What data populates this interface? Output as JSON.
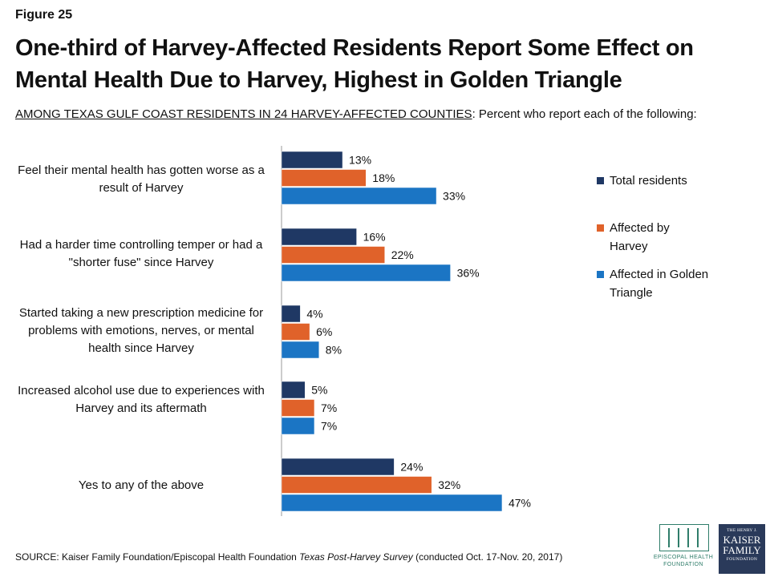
{
  "figure_label": "Figure 25",
  "title": "One-third of Harvey-Affected Residents Report Some Effect on Mental Health Due to Harvey, Highest in Golden Triangle",
  "subtitle_underlined": "AMONG TEXAS GULF COAST RESIDENTS IN 24 HARVEY-AFFECTED COUNTIES",
  "subtitle_rest": ": Percent who report each of the following:",
  "source_prefix": "SOURCE: Kaiser Family Foundation/Episcopal Health Foundation ",
  "source_italic": "Texas Post-Harvey Survey",
  "source_suffix": " (conducted Oct. 17-Nov. 20, 2017)",
  "logos": {
    "ehf_text": "EPISCOPAL HEALTH FOUNDATION",
    "kff_line1": "THE HENRY J.",
    "kff_line2": "KAISER FAMILY",
    "kff_line3": "FOUNDATION"
  },
  "chart_data": {
    "type": "bar",
    "orientation": "horizontal",
    "categories": [
      "Feel their mental health has gotten worse as a result of Harvey",
      "Had a harder time controlling temper or had a \"shorter fuse\" since Harvey",
      "Started taking a new prescription medicine for problems with emotions, nerves, or mental health since Harvey",
      "Increased alcohol use due to experiences with Harvey and its aftermath",
      "Yes to any of the above"
    ],
    "series": [
      {
        "name": "Total residents",
        "color": "#1f3864",
        "values": [
          13,
          16,
          4,
          5,
          24
        ]
      },
      {
        "name": "Affected by Harvey",
        "color": "#e0622a",
        "values": [
          18,
          22,
          6,
          7,
          32
        ]
      },
      {
        "name": "Affected in Golden Triangle",
        "color": "#1b75c4",
        "values": [
          33,
          36,
          8,
          7,
          47
        ]
      }
    ],
    "value_suffix": "%",
    "xlim": [
      0,
      100
    ],
    "legend_position": "right",
    "grid": false
  }
}
